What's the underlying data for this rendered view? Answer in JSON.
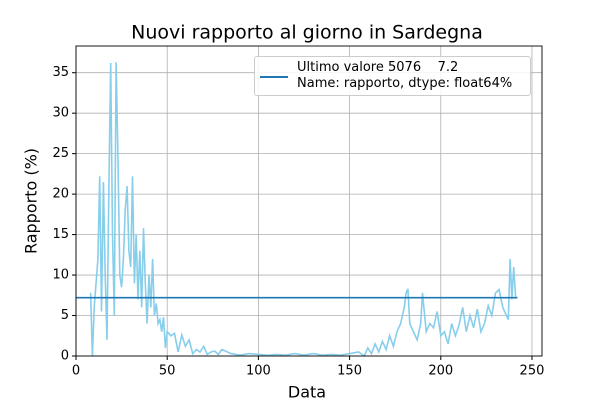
{
  "chart_data": {
    "type": "line",
    "title": "Nuovi rapporto al giorno in Sardegna",
    "xlabel": "Data",
    "ylabel": "Rapporto (%)",
    "xlim": [
      0,
      255.5
    ],
    "ylim": [
      0,
      38.3
    ],
    "xticks": [
      0,
      50,
      100,
      150,
      200,
      250
    ],
    "yticks": [
      0,
      5,
      10,
      15,
      20,
      25,
      30,
      35
    ],
    "grid": true,
    "legend": "upper right",
    "series": [
      {
        "color": "#87ceeb",
        "x": [
          8,
          9,
          10,
          12,
          13,
          14,
          15,
          16,
          17,
          18,
          19,
          20,
          21,
          22,
          23,
          24,
          25,
          26,
          27,
          28,
          29,
          30,
          31,
          32,
          33,
          34,
          35,
          36,
          37,
          38,
          39,
          40,
          41,
          42,
          43,
          44,
          45,
          46,
          47,
          48,
          49,
          50,
          52,
          54,
          56,
          58,
          60,
          62,
          64,
          66,
          68,
          70,
          72,
          74,
          76,
          78,
          80,
          85,
          90,
          95,
          100,
          105,
          110,
          115,
          120,
          125,
          130,
          135,
          140,
          145,
          150,
          155,
          158,
          160,
          162,
          164,
          166,
          168,
          170,
          172,
          174,
          176,
          178,
          180,
          181,
          182,
          183,
          185,
          187,
          189,
          190,
          192,
          194,
          196,
          198,
          200,
          202,
          204,
          206,
          208,
          210,
          212,
          214,
          216,
          218,
          220,
          222,
          224,
          226,
          228,
          230,
          232,
          234,
          236,
          237,
          238,
          239,
          240,
          241,
          242
        ],
        "values": [
          7.8,
          0,
          6,
          12,
          22.2,
          5.5,
          21.5,
          10,
          2,
          20,
          36.2,
          15,
          5,
          36.3,
          25,
          10,
          8.5,
          12,
          18,
          21,
          13,
          11,
          22.2,
          9,
          15,
          7,
          13,
          6,
          15.8,
          9,
          4,
          10,
          6,
          12,
          5,
          6.5,
          4,
          4.5,
          3,
          4.8,
          1,
          3,
          2.5,
          2.8,
          0.5,
          2.6,
          1.2,
          2,
          0.3,
          0.8,
          0.5,
          1.2,
          0.2,
          0.5,
          0.6,
          0.2,
          0.8,
          0.3,
          0.1,
          0.3,
          0.2,
          0.1,
          0.2,
          0.1,
          0.3,
          0.1,
          0.3,
          0.1,
          0.2,
          0.1,
          0.3,
          0.5,
          0,
          1,
          0.3,
          1.5,
          0.5,
          1.8,
          0.8,
          2.5,
          1.2,
          3,
          4,
          6,
          7.8,
          8.3,
          4,
          3,
          2,
          4,
          7.8,
          3,
          4,
          3.5,
          5.5,
          2.5,
          3,
          1.5,
          4,
          2.5,
          3.8,
          6,
          3,
          5,
          3.5,
          5.8,
          3,
          4,
          6.2,
          5,
          7.8,
          8.2,
          6,
          5,
          4.5,
          12,
          7,
          11,
          7.2,
          7.2
        ]
      },
      {
        "name": "Ultimo valore 5076    7.2\nName: rapporto, dtype: float64%",
        "color": "#1f77b4",
        "x": [
          0,
          242
        ],
        "values": [
          7.2,
          7.2
        ]
      }
    ]
  }
}
